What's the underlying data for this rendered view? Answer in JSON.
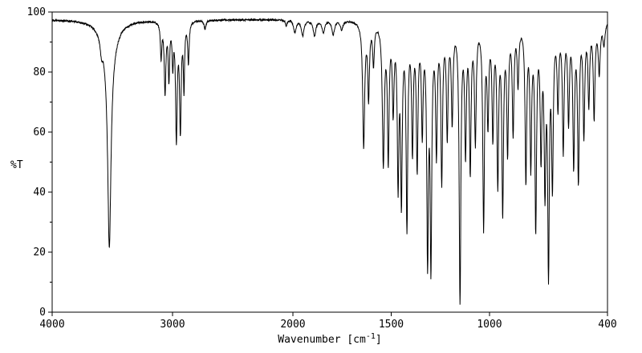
{
  "figure": {
    "background_color": "#ffffff",
    "line_color": "#000000",
    "text_color": "#000000"
  },
  "chart_data": {
    "type": "line",
    "title": "",
    "xlabel": "Wavenumber [cm⁻¹]",
    "xlabel_parts": {
      "pre": "Wavenumber [cm",
      "sup": "-1",
      "post": "]"
    },
    "ylabel": "%T",
    "x_axis": {
      "min": 400,
      "max": 4000,
      "reversed": true,
      "scale_break": 2000,
      "left_fraction": 0.4335,
      "major_ticks": [
        4000,
        3000,
        2000,
        1500,
        1000,
        400
      ]
    },
    "y_axis": {
      "min": 0,
      "max": 100,
      "major_ticks": [
        0,
        20,
        40,
        60,
        80,
        100
      ],
      "minor_ticks": [
        10,
        30,
        50,
        70,
        90
      ]
    },
    "baseline_percent_t": 97.5,
    "noise_amplitude": 0.3,
    "sample_step": 1.5,
    "peaks_format": [
      "center_wavenumber_cm-1",
      "min_percent_t",
      "half_width_cm-1"
    ],
    "peaks": [
      [
        3525,
        33,
        16
      ],
      [
        3525,
        86,
        60
      ],
      [
        3590,
        93,
        12
      ],
      [
        3095,
        86,
        7
      ],
      [
        3062,
        74,
        8
      ],
      [
        3030,
        79,
        7
      ],
      [
        2998,
        84,
        6
      ],
      [
        2968,
        59,
        8
      ],
      [
        2935,
        62,
        8
      ],
      [
        2905,
        76,
        6
      ],
      [
        2868,
        84,
        7
      ],
      [
        2730,
        94.5,
        9
      ],
      [
        2055,
        95.5,
        8
      ],
      [
        1990,
        93.5,
        8
      ],
      [
        1950,
        92.5,
        8
      ],
      [
        1890,
        92.5,
        8
      ],
      [
        1845,
        93.5,
        8
      ],
      [
        1795,
        93,
        8
      ],
      [
        1752,
        94.5,
        7
      ],
      [
        1640,
        56,
        6
      ],
      [
        1615,
        73,
        5
      ],
      [
        1590,
        84,
        5
      ],
      [
        1540,
        51,
        6
      ],
      [
        1515,
        53,
        5
      ],
      [
        1490,
        70,
        5
      ],
      [
        1465,
        46,
        5
      ],
      [
        1448,
        41,
        5
      ],
      [
        1420,
        31,
        5
      ],
      [
        1392,
        57,
        5
      ],
      [
        1368,
        51,
        5
      ],
      [
        1342,
        63,
        5
      ],
      [
        1315,
        22,
        5
      ],
      [
        1298,
        20,
        5
      ],
      [
        1270,
        56,
        5
      ],
      [
        1243,
        46,
        5
      ],
      [
        1215,
        61,
        5
      ],
      [
        1190,
        66,
        5
      ],
      [
        1150,
        4,
        5
      ],
      [
        1122,
        56,
        5
      ],
      [
        1098,
        50,
        5
      ],
      [
        1072,
        59,
        5
      ],
      [
        1030,
        30,
        5
      ],
      [
        1008,
        66,
        5
      ],
      [
        983,
        61,
        5
      ],
      [
        958,
        46,
        5
      ],
      [
        933,
        36,
        5
      ],
      [
        908,
        56,
        5
      ],
      [
        880,
        62,
        5
      ],
      [
        855,
        78,
        5
      ],
      [
        815,
        46,
        5
      ],
      [
        790,
        52,
        5
      ],
      [
        765,
        31,
        5
      ],
      [
        738,
        56,
        5
      ],
      [
        718,
        46,
        5
      ],
      [
        700,
        18,
        5
      ],
      [
        680,
        46,
        5
      ],
      [
        652,
        71,
        5
      ],
      [
        625,
        56,
        5
      ],
      [
        598,
        66,
        5
      ],
      [
        572,
        51,
        5
      ],
      [
        548,
        46,
        5
      ],
      [
        520,
        61,
        5
      ],
      [
        495,
        71,
        5
      ],
      [
        468,
        66,
        5
      ],
      [
        442,
        81,
        6
      ],
      [
        418,
        90,
        6
      ]
    ]
  }
}
